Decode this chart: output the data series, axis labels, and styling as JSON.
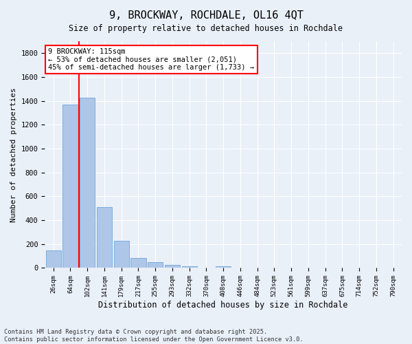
{
  "title": "9, BROCKWAY, ROCHDALE, OL16 4QT",
  "subtitle": "Size of property relative to detached houses in Rochdale",
  "xlabel": "Distribution of detached houses by size in Rochdale",
  "ylabel": "Number of detached properties",
  "categories": [
    "26sqm",
    "64sqm",
    "102sqm",
    "141sqm",
    "179sqm",
    "217sqm",
    "255sqm",
    "293sqm",
    "332sqm",
    "370sqm",
    "408sqm",
    "446sqm",
    "484sqm",
    "523sqm",
    "561sqm",
    "599sqm",
    "637sqm",
    "675sqm",
    "714sqm",
    "752sqm",
    "790sqm"
  ],
  "values": [
    145,
    1370,
    1430,
    510,
    225,
    85,
    47,
    25,
    12,
    0,
    14,
    0,
    0,
    0,
    0,
    0,
    0,
    0,
    0,
    0,
    0
  ],
  "bar_color": "#aec6e8",
  "bar_edge_color": "#5b9bd5",
  "background_color": "#eaf0f8",
  "grid_color": "#ffffff",
  "vline_color": "red",
  "vline_position": 1.5,
  "annotation_title": "9 BROCKWAY: 115sqm",
  "annotation_line1": "← 53% of detached houses are smaller (2,051)",
  "annotation_line2": "45% of semi-detached houses are larger (1,733) →",
  "annotation_box_color": "red",
  "ylim": [
    0,
    1900
  ],
  "yticks": [
    0,
    200,
    400,
    600,
    800,
    1000,
    1200,
    1400,
    1600,
    1800
  ],
  "footer": "Contains HM Land Registry data © Crown copyright and database right 2025.\nContains public sector information licensed under the Open Government Licence v3.0."
}
